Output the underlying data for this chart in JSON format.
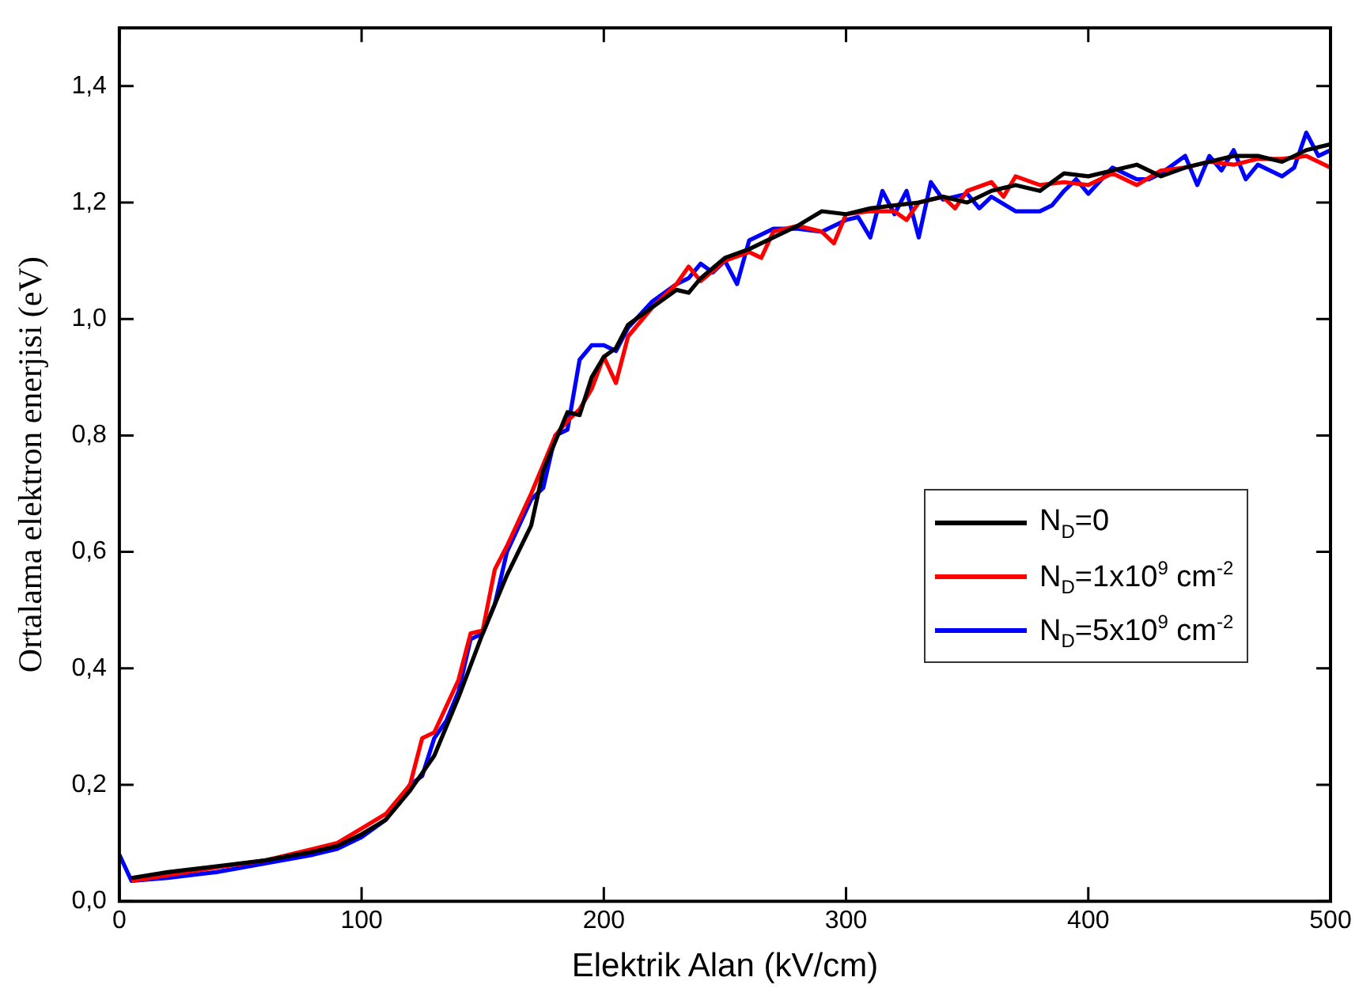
{
  "chart_data": {
    "type": "line",
    "xlabel": "Elektrik Alan (kV/cm)",
    "ylabel": "Ortalama elektron enerjisi (eV)",
    "xlim": [
      0,
      500
    ],
    "xticks": [
      0,
      100,
      200,
      300,
      400,
      500
    ],
    "ylim": [
      0,
      1.5
    ],
    "yticks": [
      {
        "value": 0,
        "label": "0,0"
      },
      {
        "value": 0.2,
        "label": "0,2"
      },
      {
        "value": 0.4,
        "label": "0,4"
      },
      {
        "value": 0.6,
        "label": "0,6"
      },
      {
        "value": 0.8,
        "label": "0,8"
      },
      {
        "value": 1,
        "label": "1,0"
      },
      {
        "value": 1.2,
        "label": "1,2"
      },
      {
        "value": 1.4,
        "label": "1,4"
      }
    ],
    "grid": false,
    "legend": "right",
    "marker": "none",
    "line_style": "solid",
    "series": [
      {
        "name": "N$_{D}$=0",
        "color": "#000000",
        "x": [
          5,
          20,
          40,
          60,
          80,
          90,
          100,
          110,
          120,
          130,
          140,
          150,
          160,
          170,
          175,
          180,
          185,
          190,
          195,
          200,
          205,
          210,
          220,
          230,
          235,
          240,
          250,
          260,
          270,
          280,
          290,
          300,
          310,
          320,
          330,
          340,
          350,
          360,
          370,
          380,
          390,
          400,
          410,
          420,
          430,
          440,
          450,
          460,
          470,
          480,
          490,
          500
        ],
        "values": [
          0.04,
          0.05,
          0.06,
          0.07,
          0.085,
          0.095,
          0.115,
          0.14,
          0.19,
          0.25,
          0.35,
          0.46,
          0.56,
          0.645,
          0.74,
          0.79,
          0.84,
          0.835,
          0.9,
          0.935,
          0.95,
          0.99,
          1.02,
          1.05,
          1.045,
          1.07,
          1.105,
          1.12,
          1.14,
          1.16,
          1.185,
          1.18,
          1.19,
          1.195,
          1.2,
          1.21,
          1.2,
          1.22,
          1.23,
          1.22,
          1.25,
          1.245,
          1.255,
          1.265,
          1.245,
          1.26,
          1.27,
          1.28,
          1.28,
          1.27,
          1.29,
          1.3
        ]
      },
      {
        "name": "N$_{D}$=1x10$^{9}$ cm$^{-2}$",
        "color": "#ff0000",
        "x": [
          5,
          20,
          40,
          60,
          80,
          90,
          100,
          110,
          120,
          125,
          130,
          140,
          145,
          150,
          155,
          160,
          170,
          180,
          185,
          190,
          195,
          200,
          205,
          210,
          220,
          230,
          235,
          240,
          250,
          260,
          265,
          270,
          280,
          290,
          295,
          300,
          310,
          320,
          325,
          330,
          340,
          345,
          350,
          360,
          365,
          370,
          380,
          390,
          400,
          410,
          420,
          430,
          440,
          450,
          460,
          470,
          480,
          490,
          500
        ],
        "values": [
          0.035,
          0.045,
          0.058,
          0.07,
          0.09,
          0.1,
          0.125,
          0.15,
          0.2,
          0.28,
          0.29,
          0.38,
          0.46,
          0.465,
          0.57,
          0.61,
          0.7,
          0.8,
          0.825,
          0.845,
          0.88,
          0.935,
          0.89,
          0.97,
          1.02,
          1.06,
          1.09,
          1.065,
          1.1,
          1.115,
          1.105,
          1.15,
          1.16,
          1.15,
          1.13,
          1.18,
          1.185,
          1.185,
          1.17,
          1.2,
          1.21,
          1.19,
          1.22,
          1.235,
          1.21,
          1.245,
          1.23,
          1.235,
          1.23,
          1.25,
          1.23,
          1.255,
          1.26,
          1.27,
          1.265,
          1.275,
          1.275,
          1.28,
          1.26
        ]
      },
      {
        "name": "N$_{D}$=5x10$^{9}$ cm$^{-2}$",
        "color": "#0000ff",
        "x": [
          0,
          5,
          20,
          40,
          60,
          80,
          90,
          100,
          110,
          120,
          125,
          130,
          135,
          140,
          145,
          150,
          155,
          160,
          170,
          175,
          180,
          185,
          190,
          195,
          200,
          205,
          210,
          220,
          230,
          235,
          240,
          245,
          250,
          255,
          260,
          270,
          280,
          290,
          300,
          305,
          310,
          315,
          320,
          325,
          330,
          335,
          340,
          350,
          355,
          360,
          370,
          380,
          385,
          390,
          395,
          400,
          410,
          420,
          425,
          430,
          440,
          445,
          450,
          455,
          460,
          465,
          470,
          480,
          485,
          490,
          495,
          500
        ],
        "values": [
          0.08,
          0.035,
          0.04,
          0.05,
          0.065,
          0.08,
          0.09,
          0.11,
          0.14,
          0.2,
          0.215,
          0.28,
          0.31,
          0.36,
          0.45,
          0.46,
          0.51,
          0.6,
          0.69,
          0.71,
          0.8,
          0.81,
          0.93,
          0.955,
          0.955,
          0.945,
          0.985,
          1.03,
          1.06,
          1.07,
          1.095,
          1.08,
          1.1,
          1.06,
          1.135,
          1.155,
          1.155,
          1.15,
          1.17,
          1.175,
          1.14,
          1.22,
          1.18,
          1.22,
          1.14,
          1.235,
          1.205,
          1.215,
          1.19,
          1.21,
          1.185,
          1.185,
          1.195,
          1.22,
          1.24,
          1.215,
          1.26,
          1.24,
          1.24,
          1.25,
          1.28,
          1.23,
          1.28,
          1.255,
          1.29,
          1.24,
          1.265,
          1.245,
          1.26,
          1.32,
          1.28,
          1.29
        ]
      }
    ]
  }
}
